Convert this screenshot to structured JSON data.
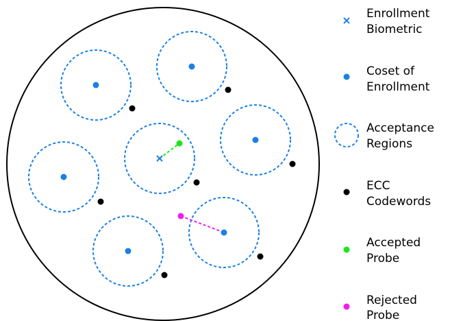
{
  "colors": {
    "enrollment": "#1a80e6",
    "codeword": "#000000",
    "accepted": "#1de51d",
    "rejected": "#f21cf2",
    "outline": "#000000"
  },
  "legend": {
    "enrollment_biometric": [
      "Enrollment",
      "Biometric"
    ],
    "coset_of_enrollment": [
      "Coset of",
      "Enrollment"
    ],
    "acceptance_regions": [
      "Acceptance",
      "Regions"
    ],
    "ecc_codewords": [
      "ECC",
      "Codewords"
    ],
    "accepted_probe": [
      "Accepted",
      "Probe"
    ],
    "rejected_probe": [
      "Rejected",
      "Probe"
    ]
  }
}
